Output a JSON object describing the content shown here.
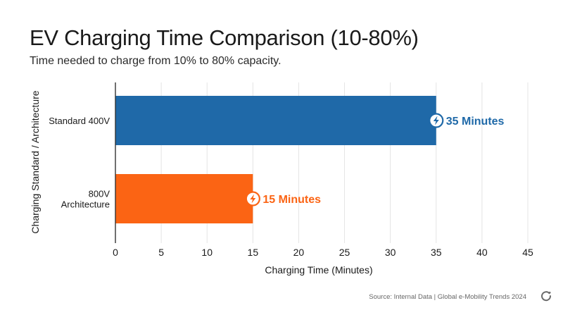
{
  "title": "EV Charging Time Comparison (10-80%)",
  "subtitle": "Time needed to charge from 10% to 80% capacity.",
  "source": "Source: Internal Data | Global e-Mobility Trends 2024",
  "chart_data": {
    "type": "bar",
    "orientation": "horizontal",
    "categories": [
      "Standard 400V",
      "800V Architecture"
    ],
    "category_lines": [
      [
        "Standard 400V"
      ],
      [
        "800V",
        "Architecture"
      ]
    ],
    "values": [
      35,
      15
    ],
    "value_labels": [
      "35 Minutes",
      "15 Minutes"
    ],
    "colors": [
      "#1f69a8",
      "#fb6414"
    ],
    "xlabel": "Charging Time (Minutes)",
    "ylabel": "Charging Standard / Architecture",
    "xlim": [
      0,
      45
    ],
    "xticks": [
      0,
      5,
      10,
      15,
      20,
      25,
      30,
      35,
      40,
      45
    ],
    "grid": "vertical",
    "legend": "none"
  }
}
